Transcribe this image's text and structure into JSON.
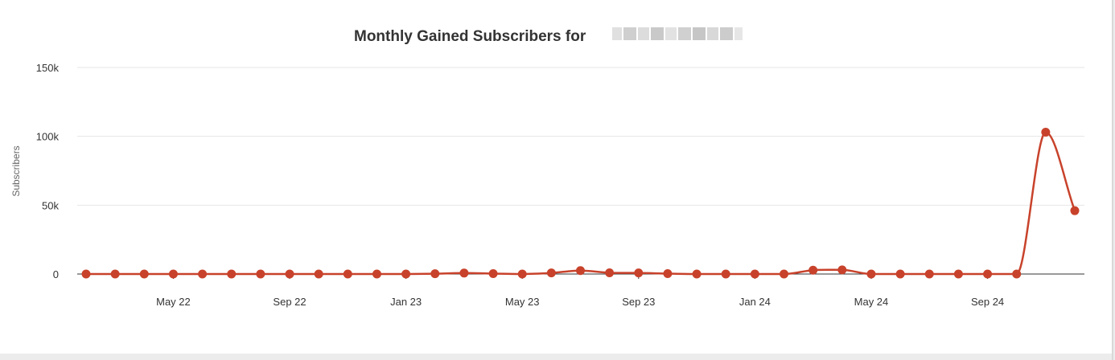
{
  "chart_data": {
    "type": "line",
    "title": "Monthly Gained Subscribers for",
    "ylabel": "Subscribers",
    "xlabel": "",
    "ylim": [
      0,
      150000
    ],
    "yticks": [
      {
        "value": 0,
        "label": "0"
      },
      {
        "value": 50000,
        "label": "50k"
      },
      {
        "value": 100000,
        "label": "100k"
      },
      {
        "value": 150000,
        "label": "150k"
      }
    ],
    "xticks": [
      {
        "date": "2022-05",
        "label": "May 22"
      },
      {
        "date": "2022-09",
        "label": "Sep 22"
      },
      {
        "date": "2023-01",
        "label": "Jan 23"
      },
      {
        "date": "2023-05",
        "label": "May 23"
      },
      {
        "date": "2023-09",
        "label": "Sep 23"
      },
      {
        "date": "2024-01",
        "label": "Jan 24"
      },
      {
        "date": "2024-05",
        "label": "May 24"
      },
      {
        "date": "2024-09",
        "label": "Sep 24"
      }
    ],
    "x_range": [
      "2022-02",
      "2024-12"
    ],
    "grid": true,
    "legend": "none",
    "series": [
      {
        "color": "#c8422b",
        "points": [
          {
            "x": "2022-02",
            "y": 0
          },
          {
            "x": "2022-03",
            "y": 0
          },
          {
            "x": "2022-04",
            "y": 0
          },
          {
            "x": "2022-05",
            "y": 0
          },
          {
            "x": "2022-06",
            "y": 0
          },
          {
            "x": "2022-07",
            "y": 0
          },
          {
            "x": "2022-08",
            "y": 0
          },
          {
            "x": "2022-09",
            "y": 0
          },
          {
            "x": "2022-10",
            "y": 0
          },
          {
            "x": "2022-11",
            "y": 0
          },
          {
            "x": "2022-12",
            "y": 0
          },
          {
            "x": "2023-01",
            "y": 0
          },
          {
            "x": "2023-02",
            "y": 200
          },
          {
            "x": "2023-03",
            "y": 700
          },
          {
            "x": "2023-04",
            "y": 300
          },
          {
            "x": "2023-05",
            "y": 0
          },
          {
            "x": "2023-06",
            "y": 800
          },
          {
            "x": "2023-07",
            "y": 2500
          },
          {
            "x": "2023-08",
            "y": 900
          },
          {
            "x": "2023-09",
            "y": 800
          },
          {
            "x": "2023-10",
            "y": 300
          },
          {
            "x": "2023-11",
            "y": 0
          },
          {
            "x": "2023-12",
            "y": 0
          },
          {
            "x": "2024-01",
            "y": 0
          },
          {
            "x": "2024-02",
            "y": 0
          },
          {
            "x": "2024-03",
            "y": 2800
          },
          {
            "x": "2024-04",
            "y": 3000
          },
          {
            "x": "2024-05",
            "y": 0
          },
          {
            "x": "2024-06",
            "y": 0
          },
          {
            "x": "2024-07",
            "y": 0
          },
          {
            "x": "2024-08",
            "y": 0
          },
          {
            "x": "2024-09",
            "y": 0
          },
          {
            "x": "2024-10",
            "y": 0
          },
          {
            "x": "2024-11",
            "y": 103000
          },
          {
            "x": "2024-12",
            "y": 46000
          }
        ]
      }
    ],
    "colors": {
      "line": "#c8422b",
      "gridline": "#e6e6e6",
      "baseline": "#333333",
      "text": "#333333",
      "redaction": "#d6d6d6"
    }
  }
}
